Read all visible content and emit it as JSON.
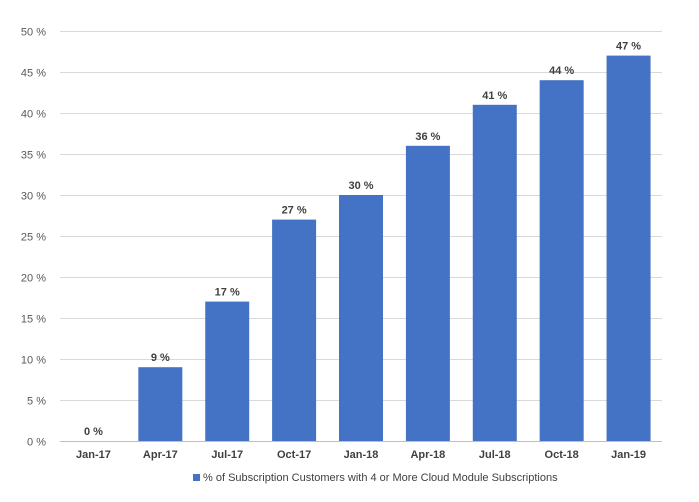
{
  "chart_data": {
    "type": "bar",
    "categories": [
      "Jan-17",
      "Apr-17",
      "Jul-17",
      "Oct-17",
      "Jan-18",
      "Apr-18",
      "Jul-18",
      "Oct-18",
      "Jan-19"
    ],
    "series": [
      {
        "name": "% of Subscription Customers with 4 or More Cloud Module Subscriptions",
        "values": [
          0,
          9,
          17,
          27,
          30,
          36,
          41,
          44,
          47
        ],
        "labels": [
          "0 %",
          "9 %",
          "17 %",
          "27 %",
          "30 %",
          "36 %",
          "41 %",
          "44 %",
          "47 %"
        ],
        "color": "#4472C4"
      }
    ],
    "yticks": [
      "0 %",
      "5 %",
      "10 %",
      "15 %",
      "20 %",
      "25 %",
      "30 %",
      "35 %",
      "40 %",
      "45 %",
      "50 %"
    ],
    "ylim": [
      0,
      50
    ],
    "grid": true,
    "legend_position": "bottom",
    "title": "",
    "xlabel": "",
    "ylabel": ""
  }
}
